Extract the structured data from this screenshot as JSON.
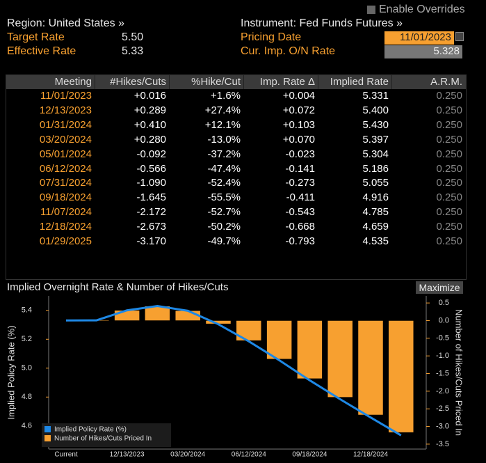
{
  "header": {
    "enable_overrides": "Enable Overrides",
    "region": "Region: United States »",
    "instrument": "Instrument: Fed Funds Futures »",
    "fields": [
      {
        "label": "Target Rate",
        "value": "5.50"
      },
      {
        "label": "Effective Rate",
        "value": "5.33"
      }
    ],
    "right_fields": [
      {
        "label": "Pricing Date",
        "value": "11/01/2023"
      },
      {
        "label": "Cur. Imp. O/N Rate",
        "value": "5.328"
      }
    ]
  },
  "table": {
    "columns": [
      "Meeting",
      "#Hikes/Cuts",
      "%Hike/Cut",
      "Imp. Rate Δ",
      "Implied Rate",
      "A.R.M."
    ],
    "rows": [
      [
        "11/01/2023",
        "+0.016",
        "+1.6%",
        "+0.004",
        "5.331",
        "0.250"
      ],
      [
        "12/13/2023",
        "+0.289",
        "+27.4%",
        "+0.072",
        "5.400",
        "0.250"
      ],
      [
        "01/31/2024",
        "+0.410",
        "+12.1%",
        "+0.103",
        "5.430",
        "0.250"
      ],
      [
        "03/20/2024",
        "+0.280",
        "-13.0%",
        "+0.070",
        "5.397",
        "0.250"
      ],
      [
        "05/01/2024",
        "-0.092",
        "-37.2%",
        "-0.023",
        "5.304",
        "0.250"
      ],
      [
        "06/12/2024",
        "-0.566",
        "-47.4%",
        "-0.141",
        "5.186",
        "0.250"
      ],
      [
        "07/31/2024",
        "-1.090",
        "-52.4%",
        "-0.273",
        "5.055",
        "0.250"
      ],
      [
        "09/18/2024",
        "-1.645",
        "-55.5%",
        "-0.411",
        "4.916",
        "0.250"
      ],
      [
        "11/07/2024",
        "-2.172",
        "-52.7%",
        "-0.543",
        "4.785",
        "0.250"
      ],
      [
        "12/18/2024",
        "-2.673",
        "-50.2%",
        "-0.668",
        "4.659",
        "0.250"
      ],
      [
        "01/29/2025",
        "-3.170",
        "-49.7%",
        "-0.793",
        "4.535",
        "0.250"
      ]
    ]
  },
  "chart_data": {
    "type": "combo",
    "title": "Implied Overnight Rate & Number of Hikes/Cuts",
    "button": "Maximize",
    "categories": [
      "Current",
      null,
      "12/13/2023",
      null,
      "03/20/2024",
      null,
      "06/12/2024",
      null,
      "09/18/2024",
      null,
      "12/18/2024",
      null
    ],
    "ylabel": "Implied Policy Rate (%)",
    "y2label": "Number of Hikes/Cuts Priced In",
    "ylim": [
      4.44,
      5.5
    ],
    "yticks": [
      4.6,
      4.8,
      {
        "value": 5,
        "label": "5.0"
      },
      5.2,
      5.4
    ],
    "y2lim": [
      -3.64,
      0.7
    ],
    "y2ticks": [
      0.5,
      {
        "value": 0,
        "label": "0.0"
      },
      -0.5,
      {
        "value": -1,
        "label": "-1.0"
      },
      -1.5,
      {
        "value": -2,
        "label": "-2.0"
      },
      -2.5,
      {
        "value": -3,
        "label": "-3.0"
      },
      -3.5
    ],
    "series": [
      {
        "name": "Implied Policy Rate (%)",
        "type": "line",
        "color": "#1e88e5",
        "values": [
          5.33,
          5.331,
          5.4,
          5.43,
          5.397,
          5.304,
          5.186,
          5.055,
          4.916,
          4.785,
          4.659,
          4.535
        ]
      },
      {
        "name": "Number of Hikes/Cuts Priced In",
        "type": "bar",
        "axis": "y2",
        "color": "#f7a030",
        "values": [
          null,
          0.016,
          0.289,
          0.41,
          0.28,
          -0.092,
          -0.566,
          -1.09,
          -1.645,
          -2.172,
          -2.673,
          -3.17
        ]
      }
    ]
  }
}
